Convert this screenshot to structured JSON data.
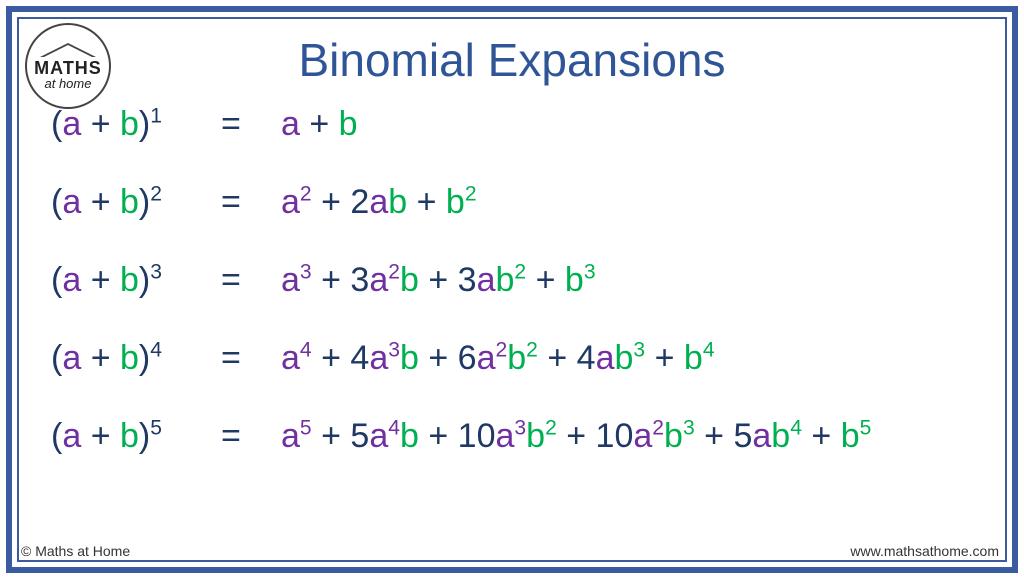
{
  "title": "Binomial Expansions",
  "logo": {
    "line1": "MATHS",
    "line2": "at home"
  },
  "footer": {
    "left": "© Maths at Home",
    "right": "www.mathsathome.com"
  },
  "colors": {
    "frame": "#3a5ba0",
    "title": "#2f5597",
    "paren_plus_coef": "#1f3864",
    "a": "#7030a0",
    "b": "#00b050",
    "background": "#ffffff"
  },
  "typography": {
    "title_fontsize": 46,
    "equation_fontsize": 34,
    "footer_fontsize": 14
  },
  "equations": [
    {
      "lhs": [
        {
          "t": "(",
          "c": "paren"
        },
        {
          "t": "a",
          "c": "avar"
        },
        {
          "t": " + ",
          "c": "plus"
        },
        {
          "t": "b",
          "c": "bvar"
        },
        {
          "t": ")",
          "c": "paren"
        },
        {
          "t": "1",
          "c": "paren",
          "sup": true
        }
      ],
      "rhs": [
        {
          "t": "a",
          "c": "avar"
        },
        {
          "t": " + ",
          "c": "plus"
        },
        {
          "t": "b",
          "c": "bvar"
        }
      ]
    },
    {
      "lhs": [
        {
          "t": "(",
          "c": "paren"
        },
        {
          "t": "a",
          "c": "avar"
        },
        {
          "t": " + ",
          "c": "plus"
        },
        {
          "t": "b",
          "c": "bvar"
        },
        {
          "t": ")",
          "c": "paren"
        },
        {
          "t": "2",
          "c": "paren",
          "sup": true
        }
      ],
      "rhs": [
        {
          "t": "a",
          "c": "avar"
        },
        {
          "t": "2",
          "c": "avar",
          "sup": true
        },
        {
          "t": " + ",
          "c": "plus"
        },
        {
          "t": "2",
          "c": "coef"
        },
        {
          "t": "a",
          "c": "avar"
        },
        {
          "t": "b",
          "c": "bvar"
        },
        {
          "t": " + ",
          "c": "plus"
        },
        {
          "t": "b",
          "c": "bvar"
        },
        {
          "t": "2",
          "c": "bvar",
          "sup": true
        }
      ]
    },
    {
      "lhs": [
        {
          "t": "(",
          "c": "paren"
        },
        {
          "t": "a",
          "c": "avar"
        },
        {
          "t": " + ",
          "c": "plus"
        },
        {
          "t": "b",
          "c": "bvar"
        },
        {
          "t": ")",
          "c": "paren"
        },
        {
          "t": "3",
          "c": "paren",
          "sup": true
        }
      ],
      "rhs": [
        {
          "t": "a",
          "c": "avar"
        },
        {
          "t": "3",
          "c": "avar",
          "sup": true
        },
        {
          "t": " + ",
          "c": "plus"
        },
        {
          "t": "3",
          "c": "coef"
        },
        {
          "t": "a",
          "c": "avar"
        },
        {
          "t": "2",
          "c": "avar",
          "sup": true
        },
        {
          "t": "b",
          "c": "bvar"
        },
        {
          "t": " + ",
          "c": "plus"
        },
        {
          "t": "3",
          "c": "coef"
        },
        {
          "t": "a",
          "c": "avar"
        },
        {
          "t": "b",
          "c": "bvar"
        },
        {
          "t": "2",
          "c": "bvar",
          "sup": true
        },
        {
          "t": " + ",
          "c": "plus"
        },
        {
          "t": "b",
          "c": "bvar"
        },
        {
          "t": "3",
          "c": "bvar",
          "sup": true
        }
      ]
    },
    {
      "lhs": [
        {
          "t": "(",
          "c": "paren"
        },
        {
          "t": "a",
          "c": "avar"
        },
        {
          "t": " + ",
          "c": "plus"
        },
        {
          "t": "b",
          "c": "bvar"
        },
        {
          "t": ")",
          "c": "paren"
        },
        {
          "t": "4",
          "c": "paren",
          "sup": true
        }
      ],
      "rhs": [
        {
          "t": "a",
          "c": "avar"
        },
        {
          "t": "4",
          "c": "avar",
          "sup": true
        },
        {
          "t": " + ",
          "c": "plus"
        },
        {
          "t": "4",
          "c": "coef"
        },
        {
          "t": "a",
          "c": "avar"
        },
        {
          "t": "3",
          "c": "avar",
          "sup": true
        },
        {
          "t": "b",
          "c": "bvar"
        },
        {
          "t": " + ",
          "c": "plus"
        },
        {
          "t": "6",
          "c": "coef"
        },
        {
          "t": "a",
          "c": "avar"
        },
        {
          "t": "2",
          "c": "avar",
          "sup": true
        },
        {
          "t": "b",
          "c": "bvar"
        },
        {
          "t": "2",
          "c": "bvar",
          "sup": true
        },
        {
          "t": " + ",
          "c": "plus"
        },
        {
          "t": "4",
          "c": "coef"
        },
        {
          "t": "a",
          "c": "avar"
        },
        {
          "t": "b",
          "c": "bvar"
        },
        {
          "t": "3",
          "c": "bvar",
          "sup": true
        },
        {
          "t": " + ",
          "c": "plus"
        },
        {
          "t": "b",
          "c": "bvar"
        },
        {
          "t": "4",
          "c": "bvar",
          "sup": true
        }
      ]
    },
    {
      "lhs": [
        {
          "t": "(",
          "c": "paren"
        },
        {
          "t": "a",
          "c": "avar"
        },
        {
          "t": " + ",
          "c": "plus"
        },
        {
          "t": "b",
          "c": "bvar"
        },
        {
          "t": ")",
          "c": "paren"
        },
        {
          "t": "5",
          "c": "paren",
          "sup": true
        }
      ],
      "rhs": [
        {
          "t": "a",
          "c": "avar"
        },
        {
          "t": "5",
          "c": "avar",
          "sup": true
        },
        {
          "t": " + ",
          "c": "plus"
        },
        {
          "t": "5",
          "c": "coef"
        },
        {
          "t": "a",
          "c": "avar"
        },
        {
          "t": "4",
          "c": "avar",
          "sup": true
        },
        {
          "t": "b",
          "c": "bvar"
        },
        {
          "t": " + ",
          "c": "plus"
        },
        {
          "t": "10",
          "c": "coef"
        },
        {
          "t": "a",
          "c": "avar"
        },
        {
          "t": "3",
          "c": "avar",
          "sup": true
        },
        {
          "t": "b",
          "c": "bvar"
        },
        {
          "t": "2",
          "c": "bvar",
          "sup": true
        },
        {
          "t": " + ",
          "c": "plus"
        },
        {
          "t": "10",
          "c": "coef"
        },
        {
          "t": "a",
          "c": "avar"
        },
        {
          "t": "2",
          "c": "avar",
          "sup": true
        },
        {
          "t": "b",
          "c": "bvar"
        },
        {
          "t": "3",
          "c": "bvar",
          "sup": true
        },
        {
          "t": " + ",
          "c": "plus"
        },
        {
          "t": "5",
          "c": "coef"
        },
        {
          "t": "a",
          "c": "avar"
        },
        {
          "t": "b",
          "c": "bvar"
        },
        {
          "t": "4",
          "c": "bvar",
          "sup": true
        },
        {
          "t": " + ",
          "c": "plus"
        },
        {
          "t": "b",
          "c": "bvar"
        },
        {
          "t": "5",
          "c": "bvar",
          "sup": true
        }
      ]
    }
  ]
}
